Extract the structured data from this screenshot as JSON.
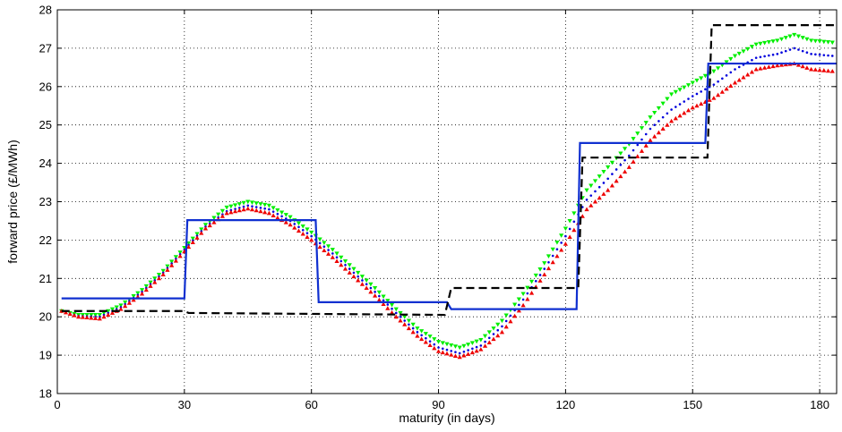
{
  "chart_data": {
    "type": "line",
    "title": "",
    "xlabel": "maturity (in days)",
    "ylabel": "forward price (£/MWh)",
    "xlim": [
      0,
      184
    ],
    "ylim": [
      18,
      28
    ],
    "xticks": [
      0,
      30,
      60,
      90,
      120,
      150,
      180
    ],
    "yticks": [
      18,
      19,
      20,
      21,
      22,
      23,
      24,
      25,
      26,
      27,
      28
    ],
    "grid": true,
    "legend": "none",
    "series": [
      {
        "color": "#00ee00",
        "style": "triangle-down-markers",
        "x": [
          1,
          5,
          10,
          15,
          20,
          25,
          30,
          35,
          40,
          45,
          50,
          55,
          60,
          65,
          70,
          75,
          80,
          85,
          90,
          95,
          100,
          105,
          110,
          115,
          120,
          125,
          130,
          135,
          140,
          145,
          150,
          155,
          160,
          165,
          170,
          174,
          178,
          183
        ],
        "y": [
          20.15,
          20.05,
          20.05,
          20.3,
          20.7,
          21.2,
          21.8,
          22.4,
          22.85,
          23.0,
          22.9,
          22.6,
          22.2,
          21.75,
          21.25,
          20.75,
          20.2,
          19.7,
          19.35,
          19.2,
          19.4,
          19.9,
          20.6,
          21.4,
          22.3,
          23.3,
          23.9,
          24.5,
          25.2,
          25.8,
          26.1,
          26.4,
          26.8,
          27.1,
          27.2,
          27.35,
          27.2,
          27.15
        ]
      },
      {
        "color": "#0000dd",
        "style": "dotted-line",
        "x": [
          1,
          5,
          10,
          15,
          20,
          25,
          30,
          35,
          40,
          45,
          50,
          55,
          60,
          65,
          70,
          75,
          80,
          85,
          90,
          95,
          100,
          105,
          110,
          115,
          120,
          125,
          130,
          135,
          140,
          145,
          150,
          155,
          160,
          165,
          170,
          174,
          178,
          183
        ],
        "y": [
          20.15,
          20.02,
          20.0,
          20.25,
          20.65,
          21.15,
          21.75,
          22.35,
          22.75,
          22.9,
          22.8,
          22.5,
          22.1,
          21.65,
          21.15,
          20.65,
          20.1,
          19.6,
          19.2,
          19.05,
          19.25,
          19.75,
          20.45,
          21.25,
          22.1,
          23.05,
          23.6,
          24.2,
          24.9,
          25.4,
          25.75,
          26.05,
          26.45,
          26.75,
          26.85,
          27.0,
          26.85,
          26.8
        ]
      },
      {
        "color": "#ee0000",
        "style": "triangle-up-markers",
        "x": [
          1,
          5,
          10,
          15,
          20,
          25,
          30,
          35,
          40,
          45,
          50,
          55,
          60,
          65,
          70,
          75,
          80,
          85,
          90,
          95,
          100,
          105,
          110,
          115,
          120,
          125,
          130,
          135,
          140,
          145,
          150,
          155,
          160,
          165,
          170,
          174,
          178,
          183
        ],
        "y": [
          20.15,
          20.0,
          19.95,
          20.2,
          20.6,
          21.1,
          21.7,
          22.3,
          22.7,
          22.82,
          22.7,
          22.4,
          22.0,
          21.55,
          21.05,
          20.55,
          20.0,
          19.5,
          19.1,
          18.95,
          19.15,
          19.6,
          20.3,
          21.1,
          21.9,
          22.8,
          23.3,
          23.9,
          24.6,
          25.1,
          25.45,
          25.7,
          26.1,
          26.45,
          26.55,
          26.6,
          26.45,
          26.4
        ]
      },
      {
        "color": "#1030d0",
        "style": "solid-step",
        "x": [
          1,
          30,
          30.7,
          61,
          61.7,
          92,
          93,
          122.6,
          123.4,
          153,
          153.7,
          184
        ],
        "y": [
          20.48,
          20.48,
          22.52,
          22.52,
          20.38,
          20.38,
          20.2,
          20.2,
          24.53,
          24.53,
          26.6,
          26.6
        ]
      },
      {
        "color": "#000000",
        "style": "dashed-step",
        "x": [
          1,
          30,
          31,
          91.5,
          93,
          123,
          124,
          153.5,
          154.5,
          184
        ],
        "y": [
          20.15,
          20.15,
          20.1,
          20.05,
          20.75,
          20.75,
          24.15,
          24.15,
          27.6,
          27.6
        ]
      }
    ]
  }
}
